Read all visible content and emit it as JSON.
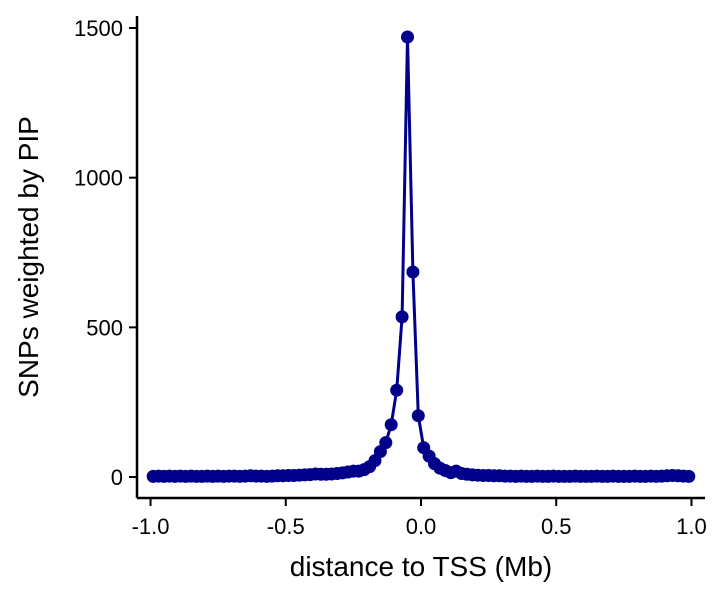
{
  "chart_data": {
    "type": "line",
    "title": "",
    "xlabel": "distance to TSS (Mb)",
    "ylabel": "SNPs weighted by PIP",
    "xlim": [
      -1.05,
      1.05
    ],
    "ylim": [
      -70,
      1540
    ],
    "x_ticks": [
      -1.0,
      -0.5,
      0.0,
      0.5,
      1.0
    ],
    "x_tick_labels": [
      "-1.0",
      "-0.5",
      "0.0",
      "0.5",
      "1.0"
    ],
    "y_ticks": [
      0,
      500,
      1000,
      1500
    ],
    "y_tick_labels": [
      "0",
      "500",
      "1000",
      "1500"
    ],
    "grid": false,
    "legend": "none",
    "series": [
      {
        "color": "#00008B",
        "marker": "circle",
        "points": [
          [
            -0.99,
            2
          ],
          [
            -0.97,
            3
          ],
          [
            -0.95,
            2
          ],
          [
            -0.93,
            3
          ],
          [
            -0.91,
            2
          ],
          [
            -0.89,
            3
          ],
          [
            -0.87,
            2
          ],
          [
            -0.85,
            3
          ],
          [
            -0.83,
            2
          ],
          [
            -0.81,
            2
          ],
          [
            -0.79,
            3
          ],
          [
            -0.77,
            2
          ],
          [
            -0.75,
            3
          ],
          [
            -0.73,
            2
          ],
          [
            -0.71,
            3
          ],
          [
            -0.69,
            3
          ],
          [
            -0.67,
            2
          ],
          [
            -0.65,
            3
          ],
          [
            -0.63,
            4
          ],
          [
            -0.61,
            3
          ],
          [
            -0.59,
            3
          ],
          [
            -0.57,
            2
          ],
          [
            -0.55,
            3
          ],
          [
            -0.53,
            4
          ],
          [
            -0.51,
            4
          ],
          [
            -0.49,
            5
          ],
          [
            -0.47,
            5
          ],
          [
            -0.45,
            6
          ],
          [
            -0.43,
            7
          ],
          [
            -0.41,
            8
          ],
          [
            -0.39,
            10
          ],
          [
            -0.37,
            9
          ],
          [
            -0.35,
            9
          ],
          [
            -0.33,
            10
          ],
          [
            -0.31,
            12
          ],
          [
            -0.29,
            14
          ],
          [
            -0.27,
            17
          ],
          [
            -0.25,
            20
          ],
          [
            -0.23,
            20
          ],
          [
            -0.21,
            25
          ],
          [
            -0.19,
            35
          ],
          [
            -0.17,
            55
          ],
          [
            -0.15,
            85
          ],
          [
            -0.13,
            115
          ],
          [
            -0.11,
            175
          ],
          [
            -0.09,
            290
          ],
          [
            -0.07,
            535
          ],
          [
            -0.05,
            1470
          ],
          [
            -0.03,
            685
          ],
          [
            -0.01,
            205
          ],
          [
            0.01,
            98
          ],
          [
            0.03,
            70
          ],
          [
            0.05,
            45
          ],
          [
            0.07,
            30
          ],
          [
            0.09,
            22
          ],
          [
            0.11,
            15
          ],
          [
            0.13,
            20
          ],
          [
            0.15,
            12
          ],
          [
            0.17,
            9
          ],
          [
            0.19,
            7
          ],
          [
            0.21,
            6
          ],
          [
            0.23,
            5
          ],
          [
            0.25,
            5
          ],
          [
            0.27,
            4
          ],
          [
            0.29,
            4
          ],
          [
            0.31,
            3
          ],
          [
            0.33,
            3
          ],
          [
            0.35,
            2
          ],
          [
            0.37,
            3
          ],
          [
            0.39,
            2
          ],
          [
            0.41,
            2
          ],
          [
            0.43,
            3
          ],
          [
            0.45,
            2
          ],
          [
            0.47,
            2
          ],
          [
            0.49,
            3
          ],
          [
            0.51,
            2
          ],
          [
            0.53,
            2
          ],
          [
            0.55,
            2
          ],
          [
            0.57,
            3
          ],
          [
            0.59,
            2
          ],
          [
            0.61,
            2
          ],
          [
            0.63,
            2
          ],
          [
            0.65,
            3
          ],
          [
            0.67,
            2
          ],
          [
            0.69,
            2
          ],
          [
            0.71,
            3
          ],
          [
            0.73,
            2
          ],
          [
            0.75,
            2
          ],
          [
            0.77,
            2
          ],
          [
            0.79,
            3
          ],
          [
            0.81,
            2
          ],
          [
            0.83,
            2
          ],
          [
            0.85,
            3
          ],
          [
            0.87,
            2
          ],
          [
            0.89,
            3
          ],
          [
            0.91,
            4
          ],
          [
            0.93,
            5
          ],
          [
            0.95,
            4
          ],
          [
            0.97,
            3
          ],
          [
            0.99,
            2
          ]
        ]
      }
    ]
  }
}
